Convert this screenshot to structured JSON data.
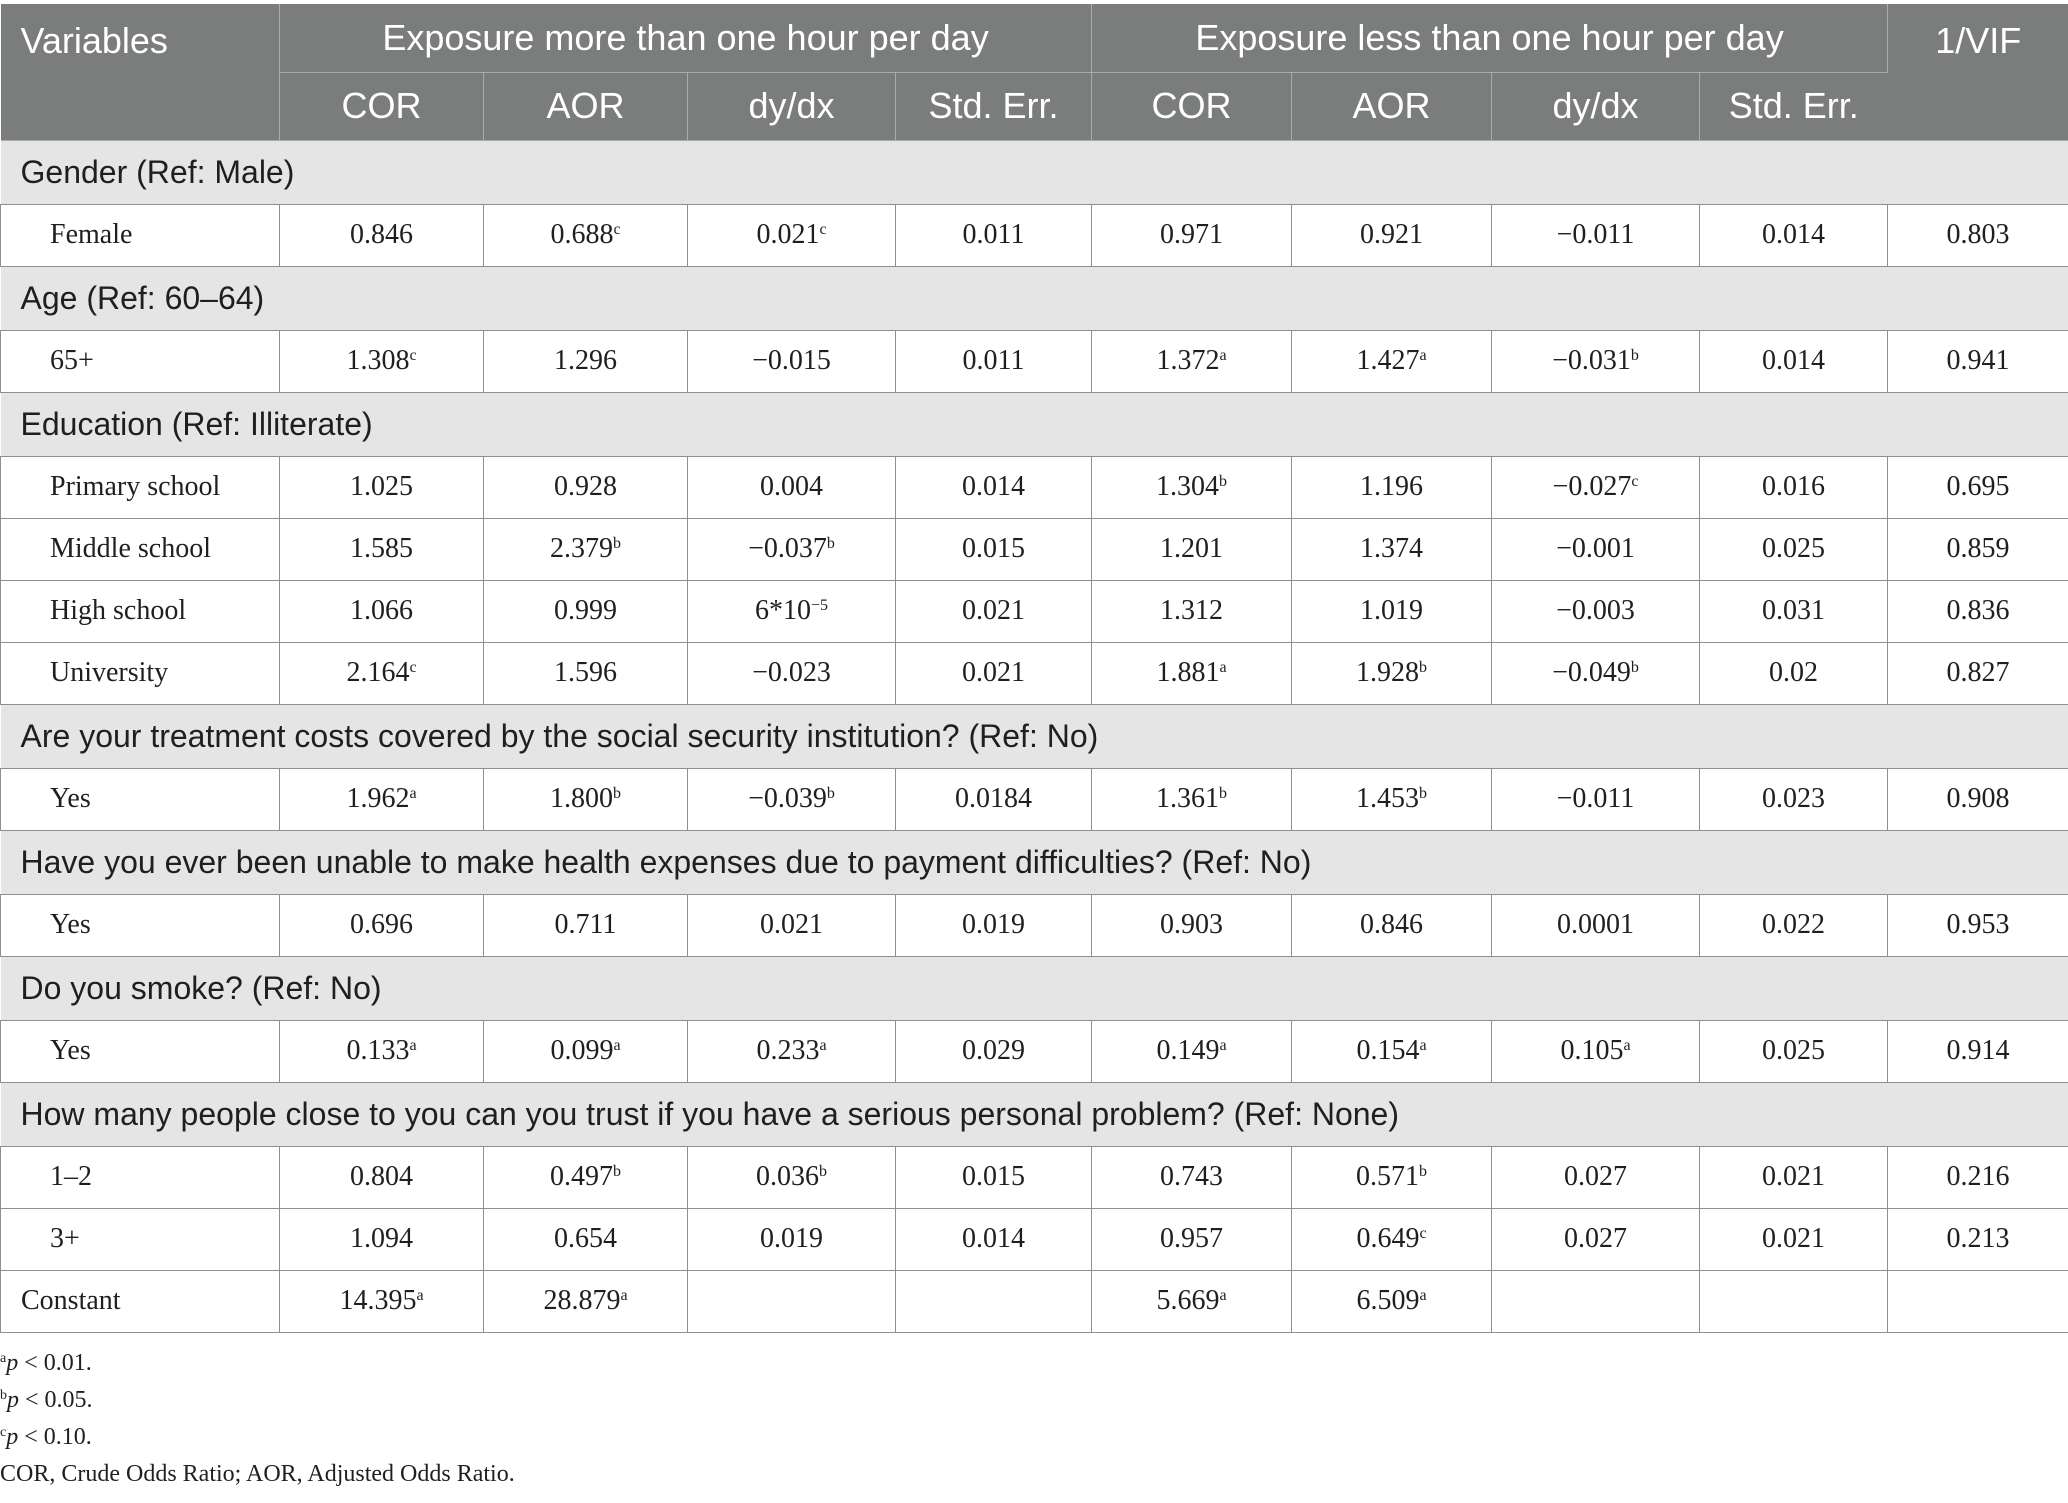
{
  "header": {
    "variables": "Variables",
    "group1": "Exposure more than one hour per day",
    "group2": "Exposure less than one hour per day",
    "vif": "1/VIF",
    "sub": [
      "COR",
      "AOR",
      "dy/dx",
      "Std. Err.",
      "COR",
      "AOR",
      "dy/dx",
      "Std. Err."
    ]
  },
  "sections": [
    {
      "title": "Gender (Ref: Male)",
      "rows": [
        {
          "label": "Female",
          "cells": [
            {
              "v": "0.846",
              "s": ""
            },
            {
              "v": "0.688",
              "s": "c"
            },
            {
              "v": "0.021",
              "s": "c"
            },
            {
              "v": "0.011",
              "s": ""
            },
            {
              "v": "0.971",
              "s": ""
            },
            {
              "v": "0.921",
              "s": ""
            },
            {
              "v": "−0.011",
              "s": ""
            },
            {
              "v": "0.014",
              "s": ""
            },
            {
              "v": "0.803",
              "s": ""
            }
          ]
        }
      ]
    },
    {
      "title": "Age (Ref: 60–64)",
      "rows": [
        {
          "label": "65+",
          "cells": [
            {
              "v": "1.308",
              "s": "c"
            },
            {
              "v": "1.296",
              "s": ""
            },
            {
              "v": "−0.015",
              "s": ""
            },
            {
              "v": "0.011",
              "s": ""
            },
            {
              "v": "1.372",
              "s": "a"
            },
            {
              "v": "1.427",
              "s": "a"
            },
            {
              "v": "−0.031",
              "s": "b"
            },
            {
              "v": "0.014",
              "s": ""
            },
            {
              "v": "0.941",
              "s": ""
            }
          ]
        }
      ]
    },
    {
      "title": "Education (Ref: Illiterate)",
      "rows": [
        {
          "label": "Primary school",
          "cells": [
            {
              "v": "1.025",
              "s": ""
            },
            {
              "v": "0.928",
              "s": ""
            },
            {
              "v": "0.004",
              "s": ""
            },
            {
              "v": "0.014",
              "s": ""
            },
            {
              "v": "1.304",
              "s": "b"
            },
            {
              "v": "1.196",
              "s": ""
            },
            {
              "v": "−0.027",
              "s": "c"
            },
            {
              "v": "0.016",
              "s": ""
            },
            {
              "v": "0.695",
              "s": ""
            }
          ]
        },
        {
          "label": "Middle school",
          "cells": [
            {
              "v": "1.585",
              "s": ""
            },
            {
              "v": "2.379",
              "s": "b"
            },
            {
              "v": "−0.037",
              "s": "b"
            },
            {
              "v": "0.015",
              "s": ""
            },
            {
              "v": "1.201",
              "s": ""
            },
            {
              "v": "1.374",
              "s": ""
            },
            {
              "v": "−0.001",
              "s": ""
            },
            {
              "v": "0.025",
              "s": ""
            },
            {
              "v": "0.859",
              "s": ""
            }
          ]
        },
        {
          "label": "High school",
          "cells": [
            {
              "v": "1.066",
              "s": ""
            },
            {
              "v": "0.999",
              "s": ""
            },
            {
              "v": "6*10",
              "s": "−5"
            },
            {
              "v": "0.021",
              "s": ""
            },
            {
              "v": "1.312",
              "s": ""
            },
            {
              "v": "1.019",
              "s": ""
            },
            {
              "v": "−0.003",
              "s": ""
            },
            {
              "v": "0.031",
              "s": ""
            },
            {
              "v": "0.836",
              "s": ""
            }
          ]
        },
        {
          "label": "University",
          "cells": [
            {
              "v": "2.164",
              "s": "c"
            },
            {
              "v": "1.596",
              "s": ""
            },
            {
              "v": "−0.023",
              "s": ""
            },
            {
              "v": "0.021",
              "s": ""
            },
            {
              "v": "1.881",
              "s": "a"
            },
            {
              "v": "1.928",
              "s": "b"
            },
            {
              "v": "−0.049",
              "s": "b"
            },
            {
              "v": "0.02",
              "s": ""
            },
            {
              "v": "0.827",
              "s": ""
            }
          ]
        }
      ]
    },
    {
      "title": "Are your treatment costs covered by the social security institution? (Ref: No)",
      "rows": [
        {
          "label": "Yes",
          "cells": [
            {
              "v": "1.962",
              "s": "a"
            },
            {
              "v": "1.800",
              "s": "b"
            },
            {
              "v": "−0.039",
              "s": "b"
            },
            {
              "v": "0.0184",
              "s": ""
            },
            {
              "v": "1.361",
              "s": "b"
            },
            {
              "v": "1.453",
              "s": "b"
            },
            {
              "v": "−0.011",
              "s": ""
            },
            {
              "v": "0.023",
              "s": ""
            },
            {
              "v": "0.908",
              "s": ""
            }
          ]
        }
      ]
    },
    {
      "title": "Have you ever been unable to make health expenses due to payment difficulties? (Ref: No)",
      "rows": [
        {
          "label": "Yes",
          "cells": [
            {
              "v": "0.696",
              "s": ""
            },
            {
              "v": "0.711",
              "s": ""
            },
            {
              "v": "0.021",
              "s": ""
            },
            {
              "v": "0.019",
              "s": ""
            },
            {
              "v": "0.903",
              "s": ""
            },
            {
              "v": "0.846",
              "s": ""
            },
            {
              "v": "0.0001",
              "s": ""
            },
            {
              "v": "0.022",
              "s": ""
            },
            {
              "v": "0.953",
              "s": ""
            }
          ]
        }
      ]
    },
    {
      "title": "Do you smoke? (Ref: No)",
      "rows": [
        {
          "label": "Yes",
          "cells": [
            {
              "v": "0.133",
              "s": "a"
            },
            {
              "v": "0.099",
              "s": "a"
            },
            {
              "v": "0.233",
              "s": "a"
            },
            {
              "v": "0.029",
              "s": ""
            },
            {
              "v": "0.149",
              "s": "a"
            },
            {
              "v": "0.154",
              "s": "a"
            },
            {
              "v": "0.105",
              "s": "a"
            },
            {
              "v": "0.025",
              "s": ""
            },
            {
              "v": "0.914",
              "s": ""
            }
          ]
        }
      ]
    },
    {
      "title": "How many people close to you can you trust if you have a serious personal problem? (Ref: None)",
      "rows": [
        {
          "label": "1–2",
          "cells": [
            {
              "v": "0.804",
              "s": ""
            },
            {
              "v": "0.497",
              "s": "b"
            },
            {
              "v": "0.036",
              "s": "b"
            },
            {
              "v": "0.015",
              "s": ""
            },
            {
              "v": "0.743",
              "s": ""
            },
            {
              "v": "0.571",
              "s": "b"
            },
            {
              "v": "0.027",
              "s": ""
            },
            {
              "v": "0.021",
              "s": ""
            },
            {
              "v": "0.216",
              "s": ""
            }
          ]
        },
        {
          "label": "3+",
          "cells": [
            {
              "v": "1.094",
              "s": ""
            },
            {
              "v": "0.654",
              "s": ""
            },
            {
              "v": "0.019",
              "s": ""
            },
            {
              "v": "0.014",
              "s": ""
            },
            {
              "v": "0.957",
              "s": ""
            },
            {
              "v": "0.649",
              "s": "c"
            },
            {
              "v": "0.027",
              "s": ""
            },
            {
              "v": "0.021",
              "s": ""
            },
            {
              "v": "0.213",
              "s": ""
            }
          ]
        }
      ]
    }
  ],
  "constant": {
    "label": "Constant",
    "cells": [
      {
        "v": "14.395",
        "s": "a"
      },
      {
        "v": "28.879",
        "s": "a"
      },
      {
        "v": "",
        "s": ""
      },
      {
        "v": "",
        "s": ""
      },
      {
        "v": "5.669",
        "s": "a"
      },
      {
        "v": "6.509",
        "s": "a"
      },
      {
        "v": "",
        "s": ""
      },
      {
        "v": "",
        "s": ""
      },
      {
        "v": "",
        "s": ""
      }
    ]
  },
  "notes": [
    {
      "sup": "a",
      "p": "p",
      "text": " < 0.01."
    },
    {
      "sup": "b",
      "p": "p",
      "text": " < 0.05."
    },
    {
      "sup": "c",
      "p": "p",
      "text": " < 0.10."
    },
    {
      "sup": "",
      "p": "",
      "text": "COR, Crude Odds Ratio; AOR, Adjusted Odds Ratio."
    }
  ]
}
